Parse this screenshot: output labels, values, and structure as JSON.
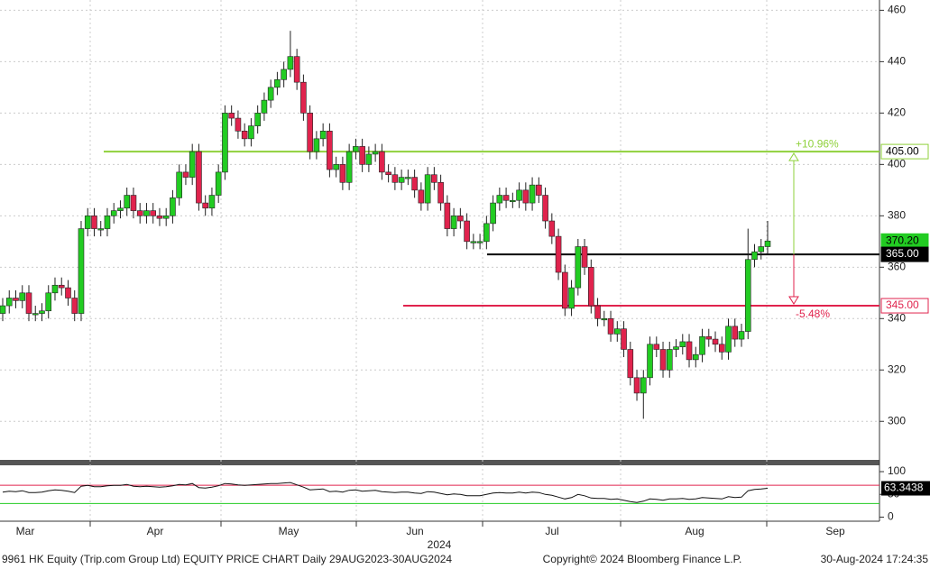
{
  "chart_data": {
    "type": "candlestick",
    "footer_left": "9961 HK Equity (Trip.com Group Ltd) EQUITY PRICE CHART  Daily 29AUG2023-30AUG2024",
    "footer_center": "Copyright© 2024 Bloomberg Finance L.P.",
    "footer_right": "30-Aug-2024 17:24:35",
    "month_labels": [
      "Mar",
      "Apr",
      "May",
      "Jun",
      "Jul",
      "Aug",
      "Sep"
    ],
    "year_label": "2024",
    "up_color": "#22cc22",
    "down_color": "#e0234d",
    "open": [
      342,
      345,
      348,
      347,
      350,
      342,
      342,
      343,
      350,
      353,
      352,
      348,
      342,
      375,
      380,
      375,
      375,
      380,
      382,
      383,
      388,
      382,
      380,
      382,
      380,
      379,
      380,
      387,
      397,
      395,
      405,
      385,
      383,
      388,
      397,
      420,
      418,
      413,
      410,
      415,
      420,
      425,
      430,
      433,
      437,
      442,
      432,
      420,
      405,
      410,
      413,
      398,
      400,
      393,
      405,
      407,
      400,
      404,
      405,
      397,
      396,
      393,
      395,
      395,
      390,
      385,
      396,
      393,
      385,
      375,
      380,
      378,
      370,
      370,
      370,
      377,
      385,
      388,
      386,
      386,
      390,
      385,
      392,
      388,
      378,
      372,
      358,
      344,
      352,
      368,
      360,
      345,
      340,
      340,
      334,
      336,
      328,
      317,
      311,
      317,
      330,
      328,
      320,
      328,
      329,
      331,
      324,
      326,
      333,
      332,
      330,
      327,
      337,
      332,
      335,
      363,
      366,
      368
    ],
    "high": [
      348,
      351,
      351,
      353,
      353,
      345,
      346,
      353,
      356,
      356,
      355,
      351,
      378,
      383,
      383,
      378,
      383,
      385,
      386,
      391,
      391,
      385,
      385,
      385,
      383,
      383,
      390,
      400,
      400,
      408,
      408,
      388,
      391,
      400,
      423,
      423,
      421,
      416,
      418,
      423,
      428,
      433,
      436,
      440,
      452,
      445,
      435,
      423,
      413,
      416,
      416,
      403,
      403,
      408,
      410,
      410,
      407,
      408,
      408,
      400,
      399,
      398,
      398,
      398,
      393,
      399,
      399,
      396,
      388,
      383,
      383,
      381,
      373,
      373,
      380,
      388,
      391,
      391,
      389,
      393,
      393,
      395,
      395,
      391,
      381,
      375,
      361,
      355,
      371,
      371,
      363,
      348,
      343,
      343,
      339,
      339,
      331,
      320,
      320,
      333,
      333,
      331,
      331,
      332,
      334,
      334,
      329,
      336,
      336,
      335,
      333,
      340,
      340,
      338,
      375,
      369,
      371,
      378
    ],
    "low": [
      339,
      342,
      344,
      344,
      339,
      339,
      339,
      340,
      347,
      349,
      345,
      339,
      339,
      372,
      372,
      372,
      372,
      377,
      379,
      380,
      379,
      377,
      377,
      377,
      376,
      376,
      377,
      384,
      392,
      392,
      382,
      380,
      380,
      385,
      394,
      415,
      410,
      407,
      407,
      412,
      417,
      422,
      427,
      430,
      434,
      429,
      417,
      402,
      402,
      407,
      395,
      395,
      390,
      390,
      402,
      397,
      397,
      401,
      394,
      393,
      390,
      390,
      392,
      387,
      382,
      382,
      390,
      382,
      372,
      372,
      375,
      367,
      367,
      367,
      367,
      374,
      382,
      383,
      383,
      383,
      382,
      382,
      385,
      375,
      369,
      355,
      341,
      341,
      349,
      357,
      342,
      337,
      337,
      331,
      331,
      325,
      314,
      308,
      301,
      314,
      325,
      317,
      317,
      325,
      326,
      321,
      321,
      323,
      329,
      327,
      324,
      324,
      329,
      329,
      332,
      360,
      363,
      365
    ],
    "close": [
      345,
      348,
      347,
      350,
      342,
      342,
      343,
      350,
      353,
      352,
      348,
      342,
      375,
      380,
      375,
      375,
      380,
      382,
      383,
      388,
      382,
      380,
      382,
      380,
      379,
      380,
      387,
      397,
      395,
      405,
      385,
      383,
      388,
      397,
      420,
      418,
      413,
      410,
      415,
      420,
      425,
      430,
      433,
      437,
      442,
      432,
      420,
      405,
      410,
      413,
      398,
      400,
      393,
      405,
      407,
      400,
      404,
      405,
      397,
      396,
      393,
      395,
      395,
      390,
      385,
      396,
      393,
      385,
      375,
      380,
      378,
      370,
      370,
      370,
      377,
      385,
      388,
      386,
      386,
      390,
      385,
      392,
      388,
      378,
      372,
      358,
      344,
      352,
      368,
      360,
      345,
      340,
      340,
      334,
      336,
      328,
      317,
      311,
      317,
      330,
      328,
      320,
      328,
      329,
      331,
      324,
      326,
      333,
      332,
      330,
      327,
      337,
      332,
      335,
      363,
      366,
      368,
      370.2
    ],
    "last_price_label": "370.20",
    "ylim": [
      285,
      464
    ],
    "yticks": [
      300,
      320,
      340,
      360,
      380,
      400,
      420,
      440,
      460
    ],
    "levels": [
      {
        "value": 405,
        "label": "405.00",
        "color": "#8fd13b"
      },
      {
        "value": 365,
        "label": "365.00",
        "color": "#000000"
      },
      {
        "value": 345,
        "label": "345.00",
        "color": "#e0234d"
      }
    ],
    "annotations": [
      "+10.96%",
      "-5.48%"
    ],
    "rsi": {
      "values": [
        55,
        57,
        56,
        58,
        54,
        54,
        55,
        58,
        60,
        59,
        57,
        54,
        68,
        70,
        67,
        67,
        69,
        70,
        70,
        72,
        68,
        67,
        68,
        67,
        66,
        67,
        69,
        72,
        71,
        74,
        65,
        64,
        66,
        69,
        74,
        73,
        71,
        70,
        71,
        72,
        73,
        74,
        74,
        75,
        76,
        71,
        66,
        60,
        61,
        62,
        56,
        57,
        55,
        59,
        60,
        57,
        58,
        59,
        56,
        55,
        54,
        55,
        55,
        53,
        52,
        56,
        55,
        52,
        49,
        51,
        50,
        47,
        47,
        47,
        50,
        53,
        54,
        53,
        53,
        55,
        53,
        55,
        54,
        50,
        48,
        44,
        40,
        43,
        50,
        47,
        42,
        41,
        41,
        39,
        40,
        37,
        34,
        32,
        35,
        40,
        39,
        37,
        40,
        40,
        41,
        39,
        40,
        43,
        42,
        41,
        40,
        45,
        43,
        44,
        58,
        61,
        62,
        63.3438
      ],
      "ylim": [
        -5,
        108
      ],
      "yticks": [
        0,
        50,
        100
      ],
      "upper": 70,
      "lower": 30,
      "upper_color": "#e0234d",
      "lower_color": "#22cc22"
    }
  }
}
